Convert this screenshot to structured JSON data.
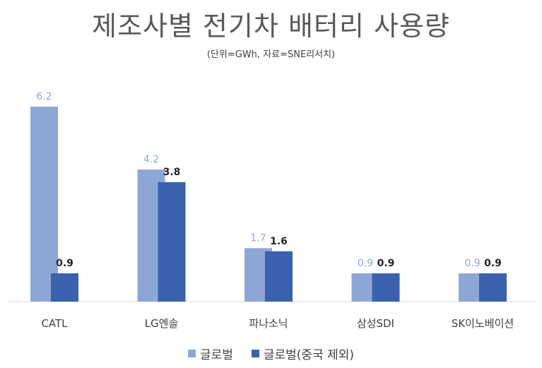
{
  "chart_data": {
    "type": "bar",
    "title": "제조사별 전기차 배터리 사용량",
    "subtitle": "(단위=GWh, 자료=SNE리서치)",
    "categories": [
      "CATL",
      "LG엔솔",
      "파나소닉",
      "삼성SDI",
      "SK이노베이션"
    ],
    "series": [
      {
        "name": "글로벌",
        "values": [
          6.2,
          4.2,
          1.7,
          0.9,
          0.9
        ],
        "color": "#8EA6D6"
      },
      {
        "name": "글로벌(중국 제외)",
        "values": [
          0.9,
          3.8,
          1.6,
          0.9,
          0.9
        ],
        "color": "#3A62AE"
      }
    ],
    "ylim": [
      0,
      6.2
    ],
    "data_labels": true,
    "legend_position": "bottom",
    "grid": false
  }
}
